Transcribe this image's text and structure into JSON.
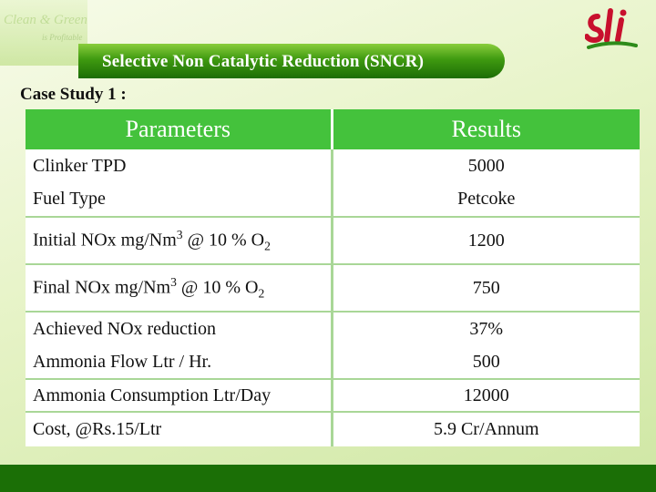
{
  "logo_left": {
    "line1": "Clean & Green",
    "line2": "is Profitable"
  },
  "title": "Selective Non Catalytic Reduction (SNCR)",
  "subtitle": "Case Study 1 :",
  "table": {
    "headers": [
      "Parameters",
      "Results"
    ],
    "rows": [
      {
        "param": "Clinker TPD",
        "result": "5000"
      },
      {
        "param": "Fuel Type",
        "result": "Petcoke"
      },
      {
        "param_main": "Initial NOx mg/Nm",
        "param_sup": "3",
        "param_mid": " @ 10 % O",
        "param_sub": "2",
        "result": "1200"
      },
      {
        "param_main": "Final NOx mg/Nm",
        "param_sup": "3",
        "param_mid": " @ 10 % O",
        "param_sub": "2",
        "result": "750"
      },
      {
        "param": "Achieved NOx reduction",
        "result": "37%"
      },
      {
        "param": "Ammonia Flow Ltr / Hr.",
        "result": "500"
      },
      {
        "param": "Ammonia Consumption Ltr/Day",
        "result": "12000"
      },
      {
        "param": "Cost, @Rs.15/Ltr",
        "result": "5.9 Cr/Annum"
      }
    ]
  },
  "colors": {
    "header_green": "#44c23c",
    "title_green": "#3f9a10",
    "footer_green": "#1b6f06",
    "logo_red": "#c8102e"
  }
}
